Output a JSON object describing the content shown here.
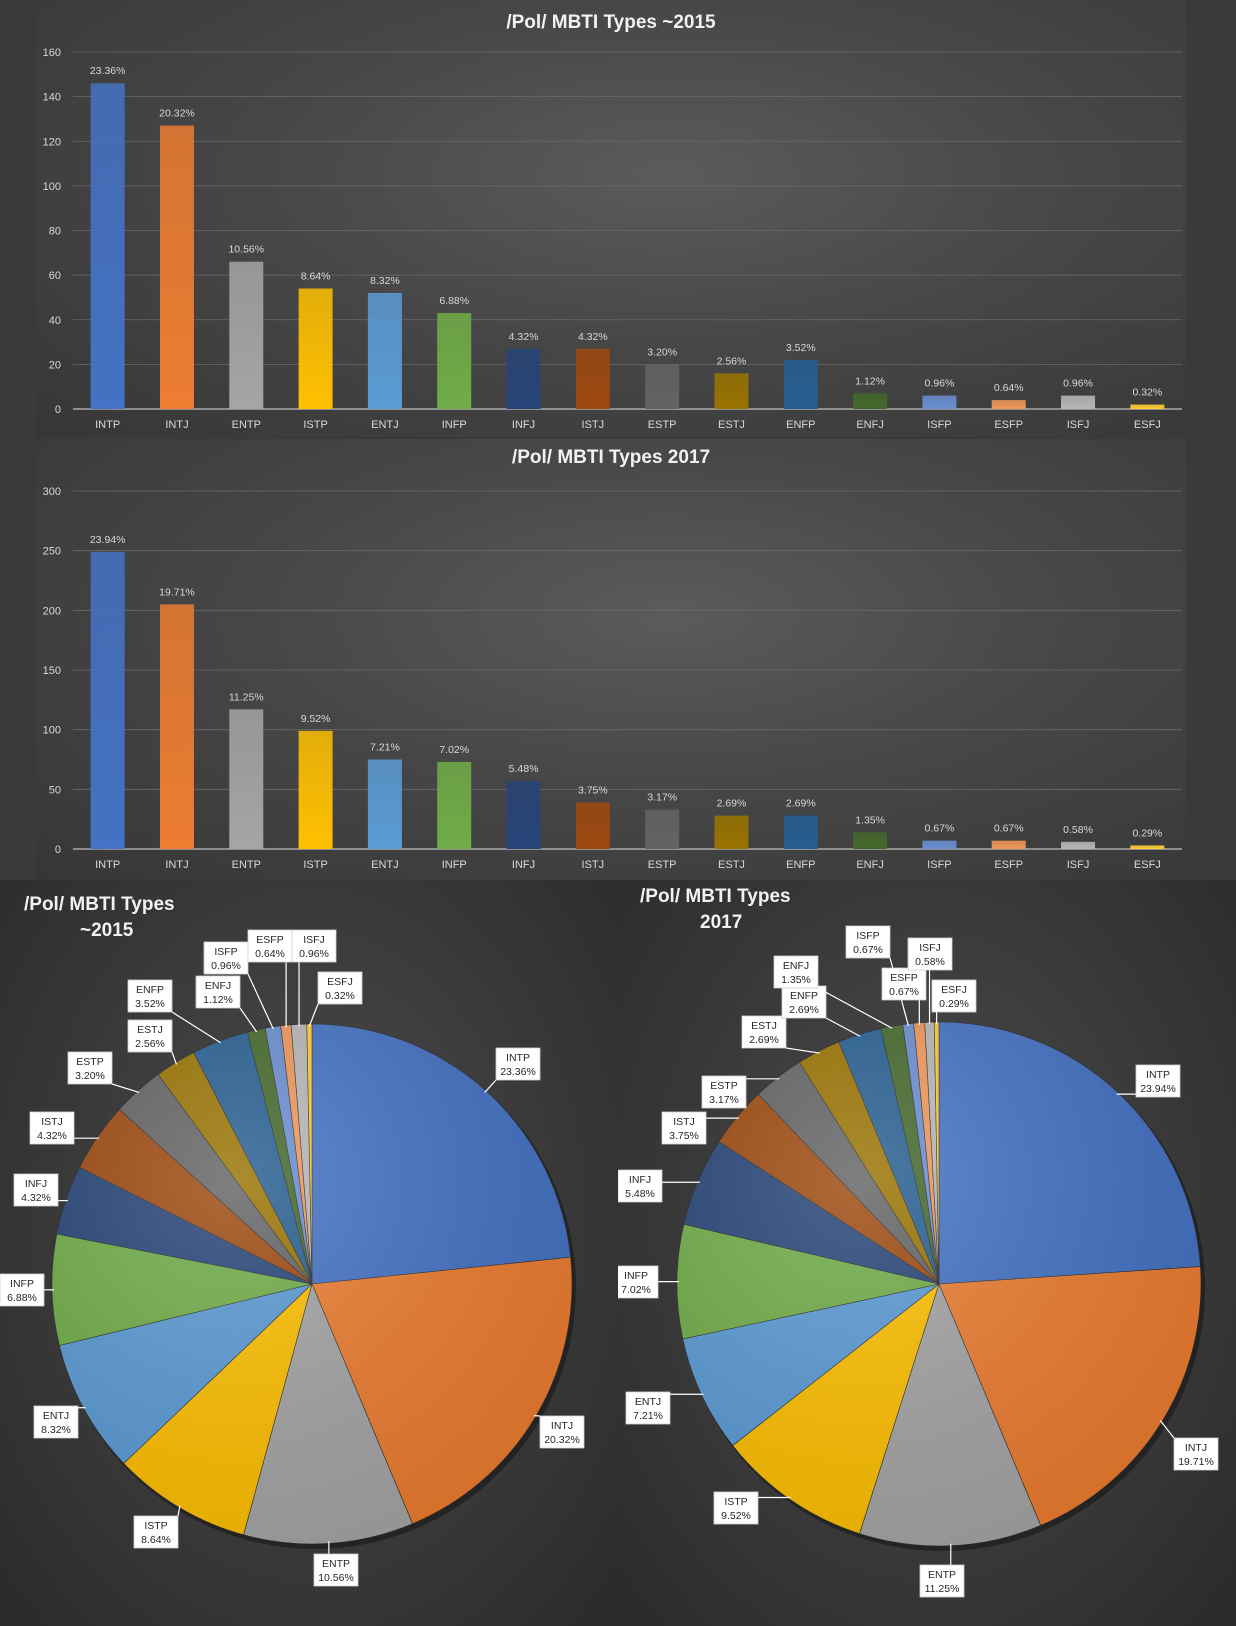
{
  "chart_data": [
    {
      "type": "bar",
      "title": "/Pol/ MBTI Types ~2015",
      "categories": [
        "INTP",
        "INTJ",
        "ENTP",
        "ISTP",
        "ENTJ",
        "INFP",
        "INFJ",
        "ISTJ",
        "ESTP",
        "ESTJ",
        "ENFP",
        "ENFJ",
        "ISFP",
        "ESFP",
        "ISFJ",
        "ESFJ"
      ],
      "values": [
        146,
        127,
        66,
        54,
        52,
        43,
        27,
        27,
        20,
        16,
        22,
        7,
        6,
        4,
        6,
        2
      ],
      "labels": [
        "23.36%",
        "20.32%",
        "10.56%",
        "8.64%",
        "8.32%",
        "6.88%",
        "4.32%",
        "4.32%",
        "3.20%",
        "2.56%",
        "3.52%",
        "1.12%",
        "0.96%",
        "0.64%",
        "0.96%",
        "0.32%"
      ],
      "yticks": [
        "0",
        "20",
        "40",
        "60",
        "80",
        "100",
        "120",
        "140",
        "160"
      ],
      "ylim": [
        0,
        160
      ],
      "grid": true
    },
    {
      "type": "bar",
      "title": "/Pol/ MBTI Types 2017",
      "categories": [
        "INTP",
        "INTJ",
        "ENTP",
        "ISTP",
        "ENTJ",
        "INFP",
        "INFJ",
        "ISTJ",
        "ESTP",
        "ESTJ",
        "ENFP",
        "ENFJ",
        "ISFP",
        "ESFP",
        "ISFJ",
        "ESFJ"
      ],
      "values": [
        249,
        205,
        117,
        99,
        75,
        73,
        57,
        39,
        33,
        28,
        28,
        14,
        7,
        7,
        6,
        3
      ],
      "labels": [
        "23.94%",
        "19.71%",
        "11.25%",
        "9.52%",
        "7.21%",
        "7.02%",
        "5.48%",
        "3.75%",
        "3.17%",
        "2.69%",
        "2.69%",
        "1.35%",
        "0.67%",
        "0.67%",
        "0.58%",
        "0.29%"
      ],
      "yticks": [
        "0",
        "50",
        "100",
        "150",
        "200",
        "250",
        "300"
      ],
      "ylim": [
        0,
        300
      ],
      "grid": true
    },
    {
      "type": "pie",
      "title_lines": [
        "/Pol/ MBTI Types",
        "~2015"
      ],
      "categories": [
        "INTP",
        "INTJ",
        "ENTP",
        "ISTP",
        "ENTJ",
        "INFP",
        "INFJ",
        "ISTJ",
        "ESTP",
        "ESTJ",
        "ENFP",
        "ENFJ",
        "ISFP",
        "ESFP",
        "ISFJ",
        "ESFJ"
      ],
      "values": [
        23.36,
        20.32,
        10.56,
        8.64,
        8.32,
        6.88,
        4.32,
        4.32,
        3.2,
        2.56,
        3.52,
        1.12,
        0.96,
        0.64,
        0.96,
        0.32
      ],
      "labels": [
        "23.36%",
        "20.32%",
        "10.56%",
        "8.64%",
        "8.32%",
        "6.88%",
        "4.32%",
        "4.32%",
        "3.20%",
        "2.56%",
        "3.52%",
        "1.12%",
        "0.96%",
        "0.64%",
        "0.96%",
        "0.32%"
      ]
    },
    {
      "type": "pie",
      "title_lines": [
        "/Pol/ MBTI Types",
        "2017"
      ],
      "categories": [
        "INTP",
        "INTJ",
        "ENTP",
        "ISTP",
        "ENTJ",
        "INFP",
        "INFJ",
        "ISTJ",
        "ESTP",
        "ESTJ",
        "ENFP",
        "ENFJ",
        "ISFP",
        "ESFP",
        "ISFJ",
        "ESFJ"
      ],
      "values": [
        23.94,
        19.71,
        11.25,
        9.52,
        7.21,
        7.02,
        5.48,
        3.75,
        3.17,
        2.69,
        2.69,
        1.35,
        0.67,
        0.67,
        0.58,
        0.29
      ],
      "labels": [
        "23.94%",
        "19.71%",
        "11.25%",
        "9.52%",
        "7.21%",
        "7.02%",
        "5.48%",
        "3.75%",
        "3.17%",
        "2.69%",
        "2.69%",
        "1.35%",
        "0.67%",
        "0.67%",
        "0.58%",
        "0.29%"
      ]
    }
  ],
  "colors": [
    "#4472c4",
    "#ed7d31",
    "#a5a5a5",
    "#ffc000",
    "#5b9bd5",
    "#70ad47",
    "#264478",
    "#9e480e",
    "#636363",
    "#997300",
    "#255e91",
    "#43682b",
    "#698ed0",
    "#f1975a",
    "#b7b7b7",
    "#ffcd33"
  ]
}
